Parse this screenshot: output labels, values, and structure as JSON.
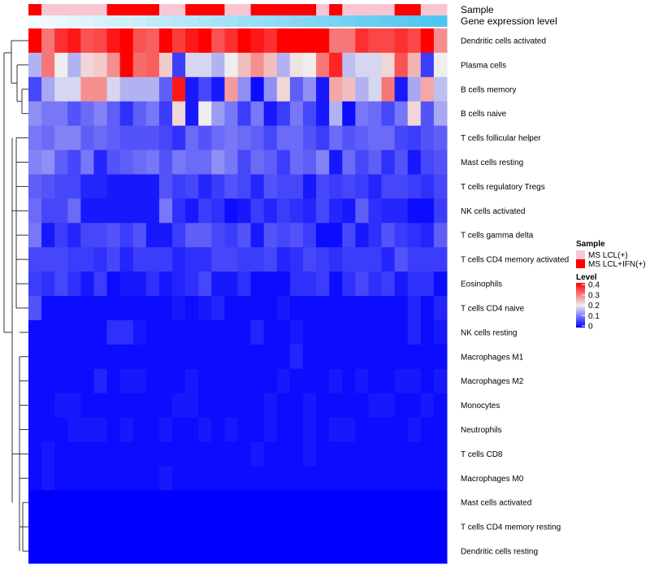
{
  "chart_data": {
    "type": "heatmap",
    "annotation_labels": [
      "Sample",
      "Gene expression level"
    ],
    "rows": [
      "Dendritic cells activated",
      "Plasma cells",
      "B cells memory",
      "B cells naive",
      "T cells follicular helper",
      "Mast cells resting",
      "T cells regulatory  Tregs",
      "NK cells activated",
      "T cells gamma delta",
      "T cells CD4 memory activated",
      "Eosinophils",
      "T cells CD4 naive",
      "NK cells resting",
      "Macrophages M1",
      "Macrophages M2",
      "Monocytes",
      "Neutrophils",
      "T cells CD8",
      "Macrophages M0",
      "Mast cells activated",
      "T cells CD4 memory resting",
      "Dendritic cells resting"
    ],
    "sample_groups": [
      1,
      0,
      0,
      0,
      0,
      0,
      1,
      1,
      1,
      1,
      0,
      0,
      1,
      1,
      1,
      0,
      0,
      1,
      1,
      1,
      1,
      1,
      0,
      1,
      0,
      0,
      0,
      0,
      1,
      1,
      0,
      0
    ],
    "gene_expression": [
      0.0,
      0.03,
      0.06,
      0.09,
      0.12,
      0.16,
      0.19,
      0.22,
      0.25,
      0.29,
      0.32,
      0.35,
      0.38,
      0.42,
      0.45,
      0.48,
      0.52,
      0.55,
      0.58,
      0.61,
      0.65,
      0.68,
      0.71,
      0.74,
      0.77,
      0.81,
      0.84,
      0.87,
      0.9,
      0.94,
      0.97,
      1.0
    ],
    "values": [
      [
        0.4,
        0.3,
        0.36,
        0.38,
        0.33,
        0.34,
        0.38,
        0.4,
        0.33,
        0.32,
        0.4,
        0.35,
        0.38,
        0.4,
        0.33,
        0.36,
        0.4,
        0.38,
        0.36,
        0.4,
        0.4,
        0.4,
        0.4,
        0.3,
        0.3,
        0.36,
        0.34,
        0.34,
        0.36,
        0.34,
        0.4,
        0.28
      ],
      [
        0.15,
        0.3,
        0.2,
        0.15,
        0.22,
        0.23,
        0.28,
        0.4,
        0.31,
        0.32,
        0.23,
        0.05,
        0.18,
        0.18,
        0.15,
        0.2,
        0.24,
        0.28,
        0.24,
        0.15,
        0.21,
        0.2,
        0.3,
        0.37,
        0.16,
        0.18,
        0.18,
        0.22,
        0.33,
        0.25,
        0.05,
        0.2
      ],
      [
        0.06,
        0.14,
        0.18,
        0.18,
        0.28,
        0.28,
        0.18,
        0.15,
        0.15,
        0.15,
        0.08,
        0.38,
        0.02,
        0.06,
        0.02,
        0.27,
        0.12,
        0.01,
        0.12,
        0.22,
        0.08,
        0.12,
        0.02,
        0.26,
        0.24,
        0.15,
        0.18,
        0.3,
        0.02,
        0.14,
        0.26,
        0.16
      ],
      [
        0.12,
        0.1,
        0.1,
        0.07,
        0.09,
        0.11,
        0.08,
        0.04,
        0.08,
        0.1,
        0.05,
        0.22,
        0.02,
        0.2,
        0.13,
        0.1,
        0.05,
        0.1,
        0.02,
        0.05,
        0.1,
        0.06,
        0.02,
        0.15,
        0.01,
        0.1,
        0.09,
        0.06,
        0.1,
        0.22,
        0.07,
        0.14
      ],
      [
        0.1,
        0.09,
        0.11,
        0.11,
        0.08,
        0.09,
        0.08,
        0.07,
        0.07,
        0.07,
        0.06,
        0.04,
        0.09,
        0.07,
        0.09,
        0.1,
        0.09,
        0.08,
        0.06,
        0.09,
        0.09,
        0.07,
        0.05,
        0.09,
        0.07,
        0.08,
        0.09,
        0.09,
        0.06,
        0.05,
        0.07,
        0.08
      ],
      [
        0.11,
        0.12,
        0.08,
        0.06,
        0.1,
        0.03,
        0.07,
        0.08,
        0.09,
        0.1,
        0.07,
        0.1,
        0.09,
        0.09,
        0.12,
        0.1,
        0.06,
        0.09,
        0.08,
        0.05,
        0.09,
        0.08,
        0.11,
        0.02,
        0.09,
        0.06,
        0.08,
        0.04,
        0.07,
        0.02,
        0.06,
        0.07
      ],
      [
        0.08,
        0.07,
        0.06,
        0.06,
        0.03,
        0.03,
        0.02,
        0.02,
        0.02,
        0.02,
        0.07,
        0.05,
        0.06,
        0.03,
        0.05,
        0.07,
        0.06,
        0.03,
        0.07,
        0.06,
        0.06,
        0.02,
        0.06,
        0.05,
        0.06,
        0.05,
        0.03,
        0.06,
        0.06,
        0.05,
        0.04,
        0.06
      ],
      [
        0.09,
        0.06,
        0.06,
        0.09,
        0.02,
        0.02,
        0.02,
        0.02,
        0.02,
        0.02,
        0.1,
        0.04,
        0.02,
        0.05,
        0.04,
        0.01,
        0.02,
        0.05,
        0.03,
        0.05,
        0.04,
        0.03,
        0.06,
        0.03,
        0.02,
        0.08,
        0.04,
        0.03,
        0.03,
        0.01,
        0.01,
        0.05
      ],
      [
        0.1,
        0.02,
        0.05,
        0.03,
        0.06,
        0.06,
        0.07,
        0.05,
        0.07,
        0.02,
        0.02,
        0.05,
        0.08,
        0.08,
        0.06,
        0.05,
        0.07,
        0.02,
        0.07,
        0.06,
        0.07,
        0.05,
        0.01,
        0.01,
        0.06,
        0.02,
        0.04,
        0.07,
        0.05,
        0.04,
        0.03,
        0.08
      ],
      [
        0.06,
        0.06,
        0.06,
        0.05,
        0.05,
        0.04,
        0.06,
        0.03,
        0.05,
        0.05,
        0.05,
        0.03,
        0.04,
        0.04,
        0.06,
        0.06,
        0.05,
        0.05,
        0.06,
        0.03,
        0.04,
        0.06,
        0.05,
        0.04,
        0.05,
        0.05,
        0.05,
        0.03,
        0.07,
        0.05,
        0.05,
        0.05
      ],
      [
        0.05,
        0.04,
        0.06,
        0.04,
        0.02,
        0.05,
        0.01,
        0.02,
        0.02,
        0.04,
        0.02,
        0.03,
        0.04,
        0.06,
        0.02,
        0.02,
        0.04,
        0.01,
        0.01,
        0.01,
        0.04,
        0.04,
        0.05,
        0.01,
        0.04,
        0.06,
        0.04,
        0.05,
        0.02,
        0.04,
        0.04,
        0.01
      ],
      [
        0.07,
        0.01,
        0.01,
        0.01,
        0.01,
        0.01,
        0.01,
        0.01,
        0.01,
        0.01,
        0.01,
        0.02,
        0.01,
        0.02,
        0.03,
        0.01,
        0.01,
        0.01,
        0.01,
        0.02,
        0.01,
        0.01,
        0.01,
        0.01,
        0.01,
        0.01,
        0.01,
        0.01,
        0.01,
        0.03,
        0.01,
        0.03
      ],
      [
        0.01,
        0.01,
        0.01,
        0.01,
        0.01,
        0.01,
        0.04,
        0.04,
        0.02,
        0.01,
        0.01,
        0.01,
        0.01,
        0.01,
        0.01,
        0.01,
        0.01,
        0.03,
        0.01,
        0.01,
        0.02,
        0.01,
        0.01,
        0.01,
        0.01,
        0.01,
        0.01,
        0.01,
        0.01,
        0.03,
        0.01,
        0.02
      ],
      [
        0.01,
        0.01,
        0.01,
        0.01,
        0.01,
        0.01,
        0.01,
        0.01,
        0.01,
        0.01,
        0.01,
        0.01,
        0.01,
        0.01,
        0.01,
        0.01,
        0.01,
        0.01,
        0.01,
        0.01,
        0.03,
        0.01,
        0.01,
        0.01,
        0.01,
        0.01,
        0.01,
        0.01,
        0.01,
        0.01,
        0.01,
        0.01
      ],
      [
        0.01,
        0.01,
        0.01,
        0.01,
        0.01,
        0.03,
        0.01,
        0.02,
        0.02,
        0.01,
        0.01,
        0.01,
        0.02,
        0.01,
        0.01,
        0.01,
        0.01,
        0.01,
        0.01,
        0.02,
        0.01,
        0.01,
        0.01,
        0.02,
        0.01,
        0.02,
        0.01,
        0.01,
        0.02,
        0.02,
        0.01,
        0.02
      ],
      [
        0.01,
        0.01,
        0.02,
        0.02,
        0.01,
        0.01,
        0.01,
        0.01,
        0.01,
        0.01,
        0.01,
        0.02,
        0.02,
        0.01,
        0.01,
        0.01,
        0.01,
        0.01,
        0.02,
        0.01,
        0.01,
        0.02,
        0.01,
        0.01,
        0.01,
        0.01,
        0.02,
        0.02,
        0.01,
        0.01,
        0.02,
        0.01
      ],
      [
        0.01,
        0.01,
        0.01,
        0.02,
        0.02,
        0.02,
        0.01,
        0.02,
        0.01,
        0.01,
        0.02,
        0.01,
        0.01,
        0.02,
        0.01,
        0.02,
        0.01,
        0.01,
        0.02,
        0.01,
        0.01,
        0.02,
        0.01,
        0.02,
        0.02,
        0.01,
        0.01,
        0.01,
        0.01,
        0.02,
        0.01,
        0.01
      ],
      [
        0.01,
        0.02,
        0.01,
        0.01,
        0.01,
        0.01,
        0.01,
        0.01,
        0.01,
        0.01,
        0.01,
        0.01,
        0.01,
        0.01,
        0.01,
        0.01,
        0.01,
        0.02,
        0.01,
        0.01,
        0.01,
        0.02,
        0.01,
        0.01,
        0.01,
        0.01,
        0.01,
        0.01,
        0.01,
        0.01,
        0.01,
        0.01
      ],
      [
        0.01,
        0.02,
        0.01,
        0.01,
        0.01,
        0.01,
        0.01,
        0.01,
        0.01,
        0.01,
        0.02,
        0.01,
        0.01,
        0.01,
        0.01,
        0.01,
        0.01,
        0.01,
        0.01,
        0.01,
        0.01,
        0.01,
        0.01,
        0.01,
        0.01,
        0.01,
        0.01,
        0.01,
        0.01,
        0.01,
        0.01,
        0.01
      ],
      [
        0.0,
        0.0,
        0.0,
        0.0,
        0.0,
        0.0,
        0.0,
        0.0,
        0.0,
        0.0,
        0.0,
        0.0,
        0.0,
        0.0,
        0.0,
        0.0,
        0.0,
        0.0,
        0.0,
        0.0,
        0.0,
        0.0,
        0.0,
        0.0,
        0.0,
        0.0,
        0.0,
        0.0,
        0.0,
        0.0,
        0.0,
        0.0
      ],
      [
        0.0,
        0.0,
        0.0,
        0.0,
        0.0,
        0.0,
        0.0,
        0.0,
        0.0,
        0.0,
        0.0,
        0.0,
        0.0,
        0.0,
        0.0,
        0.0,
        0.0,
        0.0,
        0.0,
        0.0,
        0.0,
        0.0,
        0.0,
        0.0,
        0.0,
        0.0,
        0.0,
        0.0,
        0.0,
        0.0,
        0.0,
        0.0
      ],
      [
        0.0,
        0.0,
        0.0,
        0.0,
        0.0,
        0.0,
        0.0,
        0.0,
        0.0,
        0.0,
        0.0,
        0.0,
        0.0,
        0.0,
        0.0,
        0.0,
        0.0,
        0.0,
        0.0,
        0.0,
        0.0,
        0.0,
        0.0,
        0.0,
        0.0,
        0.0,
        0.0,
        0.0,
        0.0,
        0.0,
        0.0,
        0.0
      ]
    ],
    "color_scale": {
      "min": 0,
      "max": 0.4,
      "low": "#0000ff",
      "mid": "#eeeeee",
      "high": "#ff0000"
    },
    "legend": {
      "sample_title": "Sample",
      "sample_items": [
        {
          "label": "MS LCL(+)",
          "color": "#f8c6d2"
        },
        {
          "label": "MS LCL+IFN(+)",
          "color": "#ff0000"
        }
      ],
      "level_title": "Level",
      "level_ticks": [
        "0.4",
        "0.3",
        "0.2",
        "0.1",
        "0"
      ],
      "placement": "right"
    },
    "annotation_colors": {
      "expression_low": "#f2fbfe",
      "expression_high": "#4ec4f0"
    }
  }
}
